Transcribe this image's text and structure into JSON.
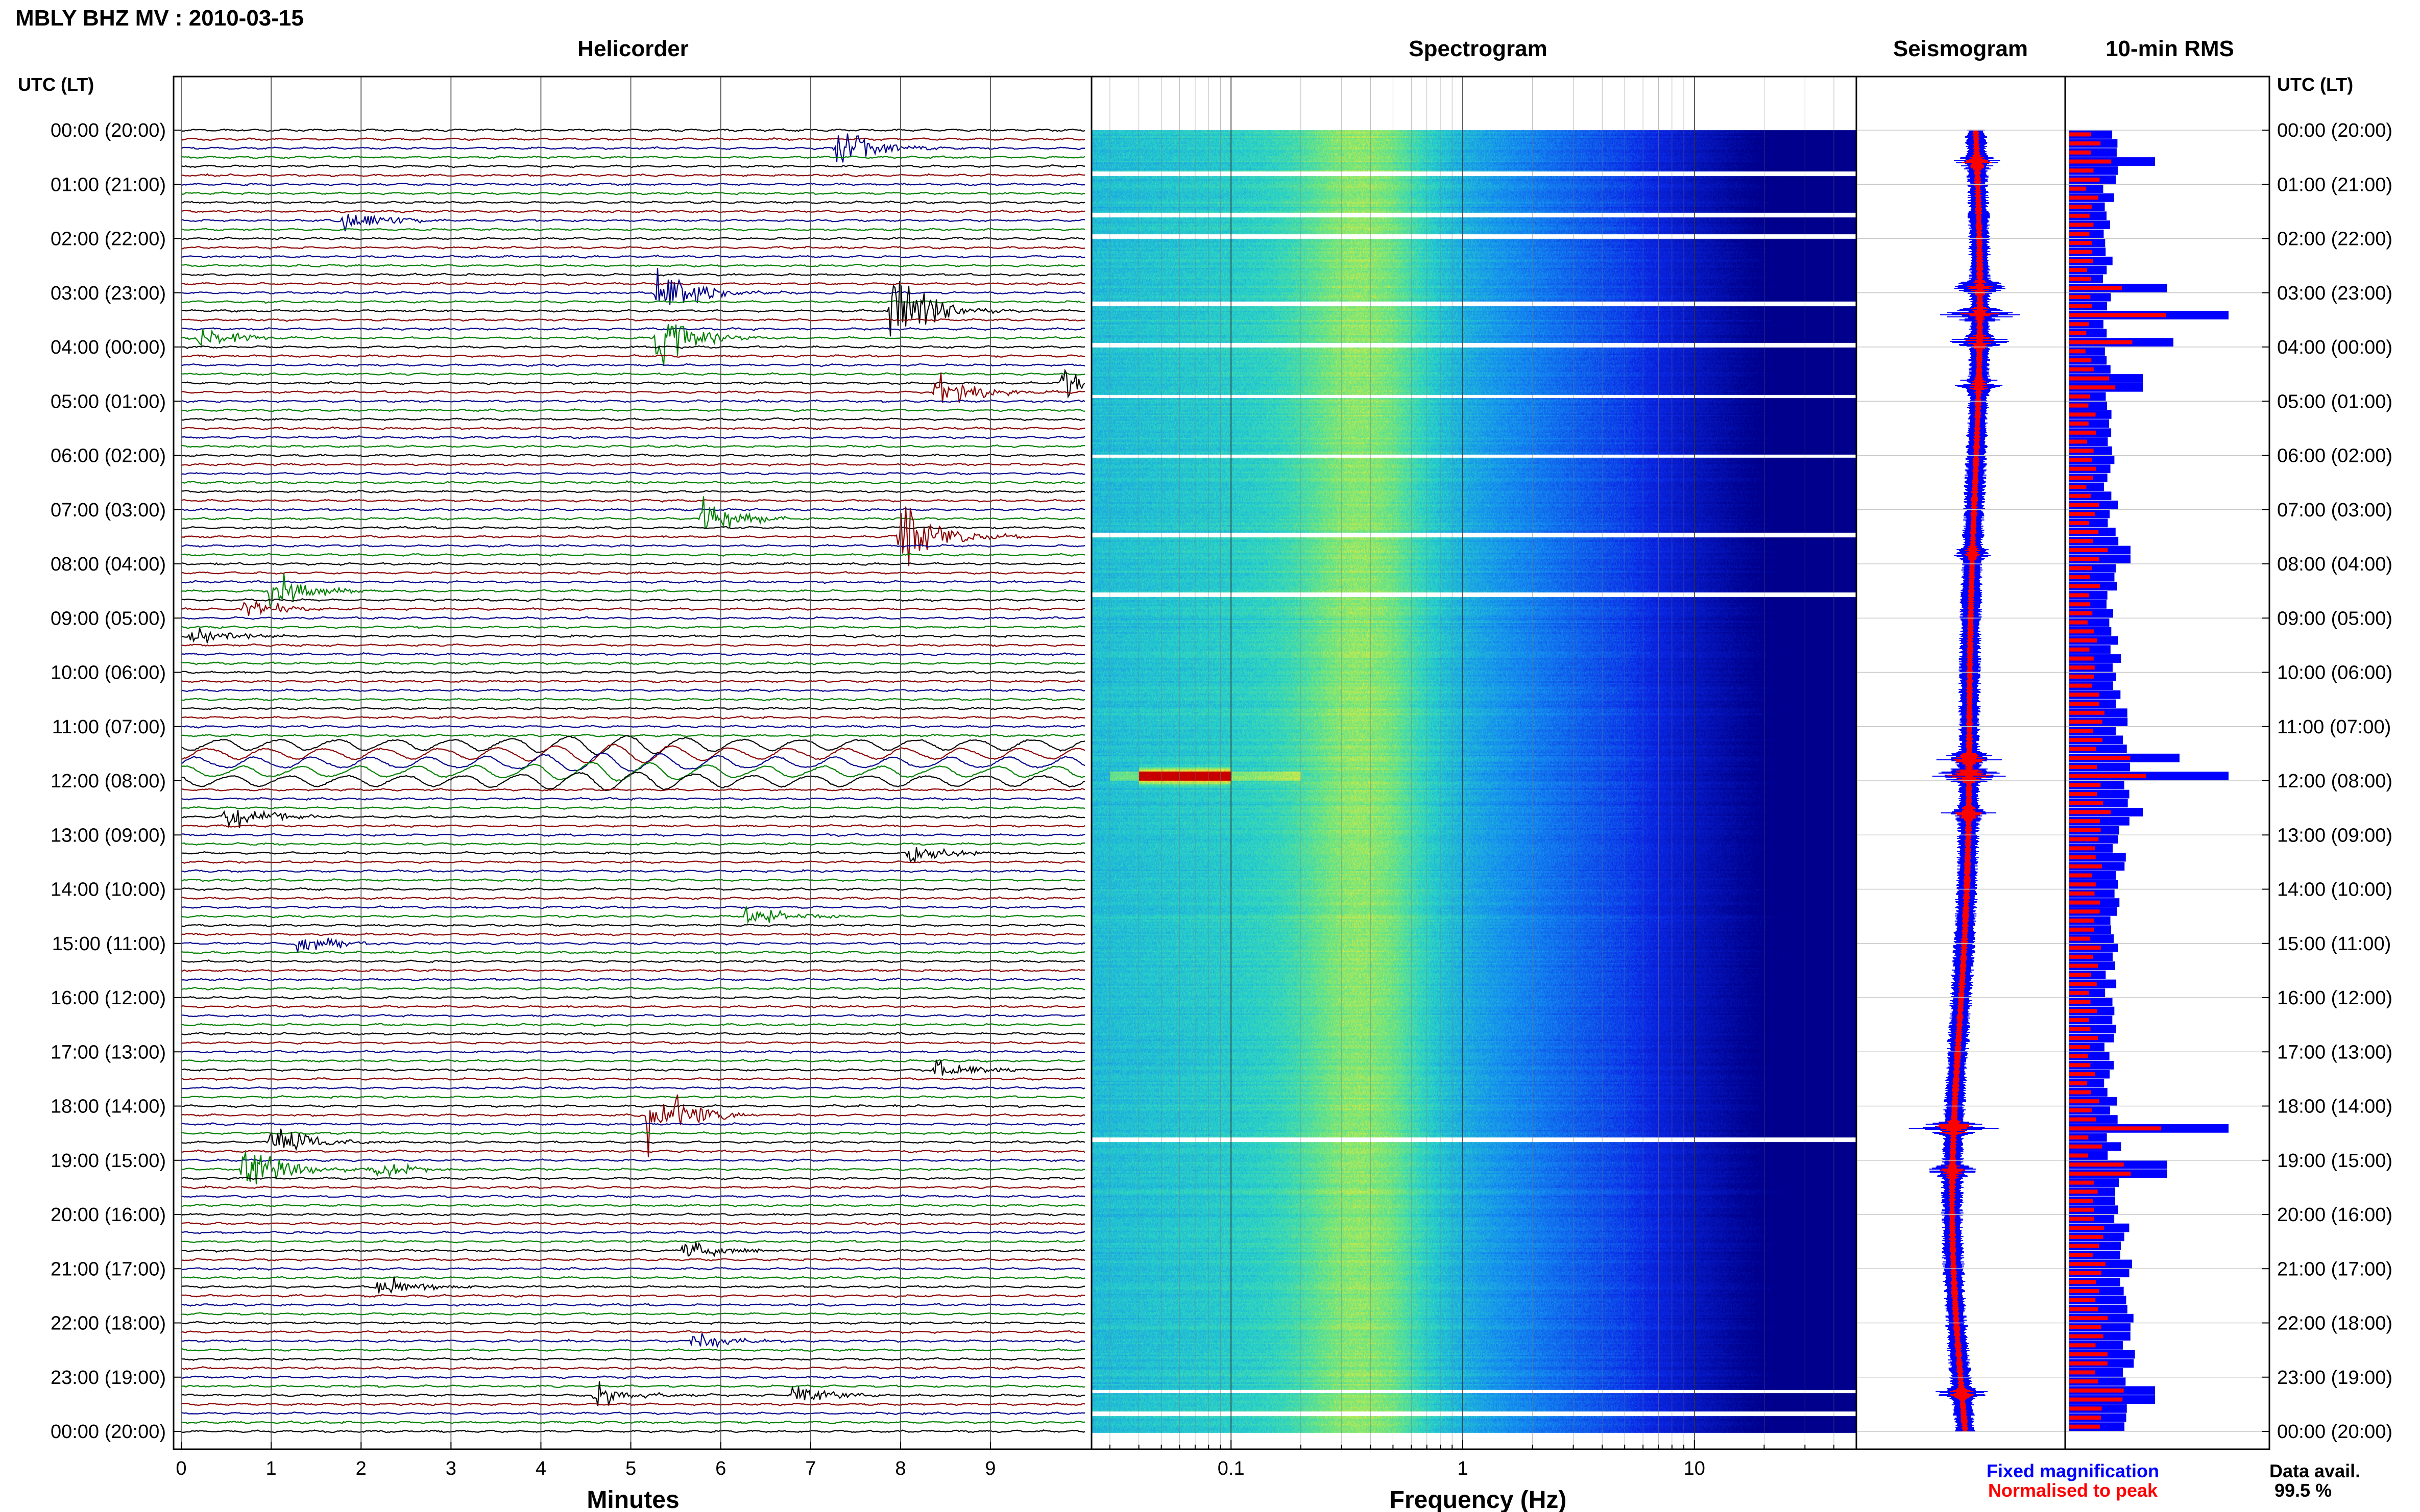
{
  "header": {
    "title": "MBLY BHZ MV : 2010-03-15",
    "utc_label_left": "UTC (LT)",
    "utc_label_right": "UTC (LT)"
  },
  "panels": {
    "helicorder": "Helicorder",
    "spectrogram": "Spectrogram",
    "seismogram": "Seismogram",
    "rms": "10-min RMS"
  },
  "footer": {
    "minutes_label": "Minutes",
    "frequency_label": "Frequency (Hz)",
    "legend_fixed": "Fixed magnification",
    "legend_normalised": "Normalised to peak",
    "data_avail_label": "Data avail.",
    "data_avail_value": "99.5 %"
  },
  "colors": {
    "fixed": "#0000ff",
    "normalised": "#ff0000",
    "trace_cycle": [
      "#000000",
      "#8b0000",
      "#00008b",
      "#008000"
    ]
  },
  "chart_data": [
    {
      "type": "line",
      "name": "helicorder",
      "title": "Helicorder",
      "xlabel": "Minutes",
      "x_ticks": [
        "0",
        "1",
        "2",
        "3",
        "4",
        "5",
        "6",
        "7",
        "8",
        "9"
      ],
      "xlim": [
        0,
        10
      ],
      "time_labels": [
        "00:00 (20:00)",
        "01:00 (21:00)",
        "02:00 (22:00)",
        "03:00 (23:00)",
        "04:00 (00:00)",
        "05:00 (01:00)",
        "06:00 (02:00)",
        "07:00 (03:00)",
        "08:00 (04:00)",
        "09:00 (05:00)",
        "10:00 (06:00)",
        "11:00 (07:00)",
        "12:00 (08:00)",
        "13:00 (09:00)",
        "14:00 (10:00)",
        "15:00 (11:00)",
        "16:00 (12:00)",
        "17:00 (13:00)",
        "18:00 (14:00)",
        "19:00 (15:00)",
        "20:00 (16:00)",
        "21:00 (17:00)",
        "22:00 (18:00)",
        "23:00 (19:00)",
        "00:00 (20:00)"
      ],
      "events": [
        {
          "hour": 0.35,
          "minute": 7.3,
          "amp": 1.4,
          "color": 3
        },
        {
          "hour": 1.6,
          "minute": 1.8,
          "amp": 1.0,
          "color": 2
        },
        {
          "hour": 3.0,
          "minute": 5.3,
          "amp": 2.0,
          "color": 2
        },
        {
          "hour": 3.3,
          "minute": 7.9,
          "amp": 3.0,
          "color": 0
        },
        {
          "hour": 3.8,
          "minute": 5.3,
          "amp": 2.0,
          "color": 3
        },
        {
          "hour": 3.9,
          "minute": 0.2,
          "amp": 1.0,
          "color": 0
        },
        {
          "hour": 4.6,
          "minute": 9.8,
          "amp": 1.2,
          "color": 0
        },
        {
          "hour": 4.9,
          "minute": 8.4,
          "amp": 1.4,
          "color": 2
        },
        {
          "hour": 7.2,
          "minute": 5.8,
          "amp": 1.3,
          "color": 3
        },
        {
          "hour": 7.5,
          "minute": 8.0,
          "amp": 2.5,
          "color": 1
        },
        {
          "hour": 8.5,
          "minute": 1.0,
          "amp": 1.3,
          "color": 2
        },
        {
          "hour": 8.8,
          "minute": 0.7,
          "amp": 0.8,
          "color": 0
        },
        {
          "hour": 9.3,
          "minute": 0.1,
          "amp": 0.8,
          "color": 0
        },
        {
          "hour": 12.6,
          "minute": 0.5,
          "amp": 1.0,
          "color": 3
        },
        {
          "hour": 13.3,
          "minute": 8.1,
          "amp": 0.8,
          "color": 0
        },
        {
          "hour": 14.5,
          "minute": 6.3,
          "amp": 0.9,
          "color": 3
        },
        {
          "hour": 15.0,
          "minute": 1.3,
          "amp": 0.8,
          "color": 1
        },
        {
          "hour": 17.4,
          "minute": 8.4,
          "amp": 0.8,
          "color": 0
        },
        {
          "hour": 18.2,
          "minute": 5.2,
          "amp": 2.5,
          "color": 2
        },
        {
          "hour": 18.7,
          "minute": 1.0,
          "amp": 1.3,
          "color": 0
        },
        {
          "hour": 19.1,
          "minute": 0.7,
          "amp": 2.0,
          "color": 3
        },
        {
          "hour": 19.1,
          "minute": 2.1,
          "amp": 0.8,
          "color": 0
        },
        {
          "hour": 20.6,
          "minute": 5.6,
          "amp": 0.8,
          "color": 0
        },
        {
          "hour": 21.4,
          "minute": 2.2,
          "amp": 0.8,
          "color": 2
        },
        {
          "hour": 22.3,
          "minute": 5.7,
          "amp": 0.7,
          "color": 0
        },
        {
          "hour": 23.3,
          "minute": 4.6,
          "amp": 0.8,
          "color": 0
        },
        {
          "hour": 23.3,
          "minute": 6.8,
          "amp": 0.8,
          "color": 0
        }
      ],
      "long_period_wave": {
        "hour_start": 11.3,
        "hour_end": 12.0
      }
    },
    {
      "type": "heatmap",
      "name": "spectrogram",
      "title": "Spectrogram",
      "xlabel": "Frequency (Hz)",
      "x_scale": "log",
      "xlim": [
        0.025,
        50
      ],
      "x_ticks": [
        "0.1",
        "1",
        "10"
      ],
      "strong_event": {
        "hour": 11.9,
        "freq_low": 0.04,
        "freq_high": 0.1
      }
    },
    {
      "type": "line",
      "name": "seismogram",
      "title": "Seismogram",
      "series": [
        {
          "name": "Fixed magnification",
          "color": "#0000ff"
        },
        {
          "name": "Normalised to peak",
          "color": "#ff0000"
        }
      ]
    },
    {
      "type": "bar",
      "name": "rms",
      "title": "10-min RMS",
      "series": [
        {
          "name": "Fixed magnification",
          "color": "#0000ff"
        },
        {
          "name": "Normalised to peak",
          "color": "#ff0000"
        }
      ],
      "peaks": [
        {
          "hour": 0.6,
          "value": 1.4
        },
        {
          "hour": 2.9,
          "value": 1.6
        },
        {
          "hour": 3.4,
          "value": 2.6
        },
        {
          "hour": 3.9,
          "value": 1.7
        },
        {
          "hour": 4.7,
          "value": 1.2
        },
        {
          "hour": 7.8,
          "value": 1.0
        },
        {
          "hour": 11.6,
          "value": 1.8
        },
        {
          "hour": 11.9,
          "value": 2.6
        },
        {
          "hour": 12.6,
          "value": 1.2
        },
        {
          "hour": 18.4,
          "value": 2.6
        },
        {
          "hour": 19.2,
          "value": 1.6
        },
        {
          "hour": 23.3,
          "value": 1.4
        }
      ]
    }
  ]
}
